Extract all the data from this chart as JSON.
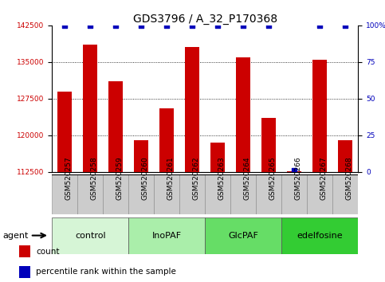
{
  "title": "GDS3796 / A_32_P170368",
  "samples": [
    "GSM520257",
    "GSM520258",
    "GSM520259",
    "GSM520260",
    "GSM520261",
    "GSM520262",
    "GSM520263",
    "GSM520264",
    "GSM520265",
    "GSM520266",
    "GSM520267",
    "GSM520268"
  ],
  "counts": [
    129000,
    138500,
    131000,
    119000,
    125500,
    138000,
    118500,
    136000,
    123500,
    112600,
    135500,
    119000
  ],
  "percentiles": [
    100,
    100,
    100,
    100,
    100,
    100,
    100,
    100,
    100,
    1,
    100,
    100
  ],
  "groups": [
    {
      "label": "control",
      "start": 0,
      "end": 3,
      "color": "#d6f5d6"
    },
    {
      "label": "InoPAF",
      "start": 3,
      "end": 6,
      "color": "#aaeeaa"
    },
    {
      "label": "GlcPAF",
      "start": 6,
      "end": 9,
      "color": "#66dd66"
    },
    {
      "label": "edelfosine",
      "start": 9,
      "end": 12,
      "color": "#33cc33"
    }
  ],
  "ylim_left": [
    112500,
    142500
  ],
  "ylim_right": [
    0,
    100
  ],
  "yticks_left": [
    112500,
    120000,
    127500,
    135000,
    142500
  ],
  "yticks_right": [
    0,
    25,
    50,
    75,
    100
  ],
  "bar_color": "#cc0000",
  "dot_color": "#0000bb",
  "bar_width": 0.55,
  "grid_color": "#000000",
  "bg_color": "#ffffff",
  "sample_box_color": "#cccccc",
  "agent_label": "agent",
  "legend_count_label": "count",
  "legend_pct_label": "percentile rank within the sample",
  "title_fontsize": 10,
  "tick_fontsize": 6.5,
  "group_fontsize": 8,
  "legend_fontsize": 7.5
}
